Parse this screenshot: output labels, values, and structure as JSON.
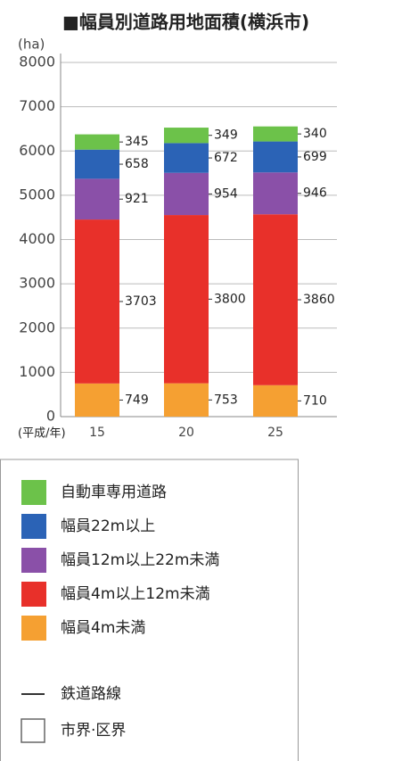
{
  "chart_data": {
    "type": "bar",
    "stacked": true,
    "title": "■幅員別道路用地面積(横浜市)",
    "y_label": "(ha)",
    "x_label": "(平成/年)",
    "categories": [
      "15",
      "20",
      "25"
    ],
    "series": [
      {
        "name": "幅員4m未満",
        "color": "#f5a032",
        "values": [
          749,
          753,
          710
        ]
      },
      {
        "name": "幅員4m以上12m未満",
        "color": "#e8302a",
        "values": [
          3703,
          3800,
          3860
        ]
      },
      {
        "name": "幅員12m以上22m未満",
        "color": "#8a50a8",
        "values": [
          921,
          954,
          946
        ]
      },
      {
        "name": "幅員22m以上",
        "color": "#2b63b6",
        "values": [
          658,
          672,
          699
        ]
      },
      {
        "name": "自動車専用道路",
        "color": "#6cc24a",
        "values": [
          345,
          349,
          340
        ]
      }
    ],
    "ylim": [
      0,
      8000
    ],
    "yticks": [
      0,
      1000,
      2000,
      3000,
      4000,
      5000,
      6000,
      7000,
      8000
    ],
    "grid": true
  },
  "map_legend": [
    "鉄道路線",
    "市界·区界"
  ]
}
